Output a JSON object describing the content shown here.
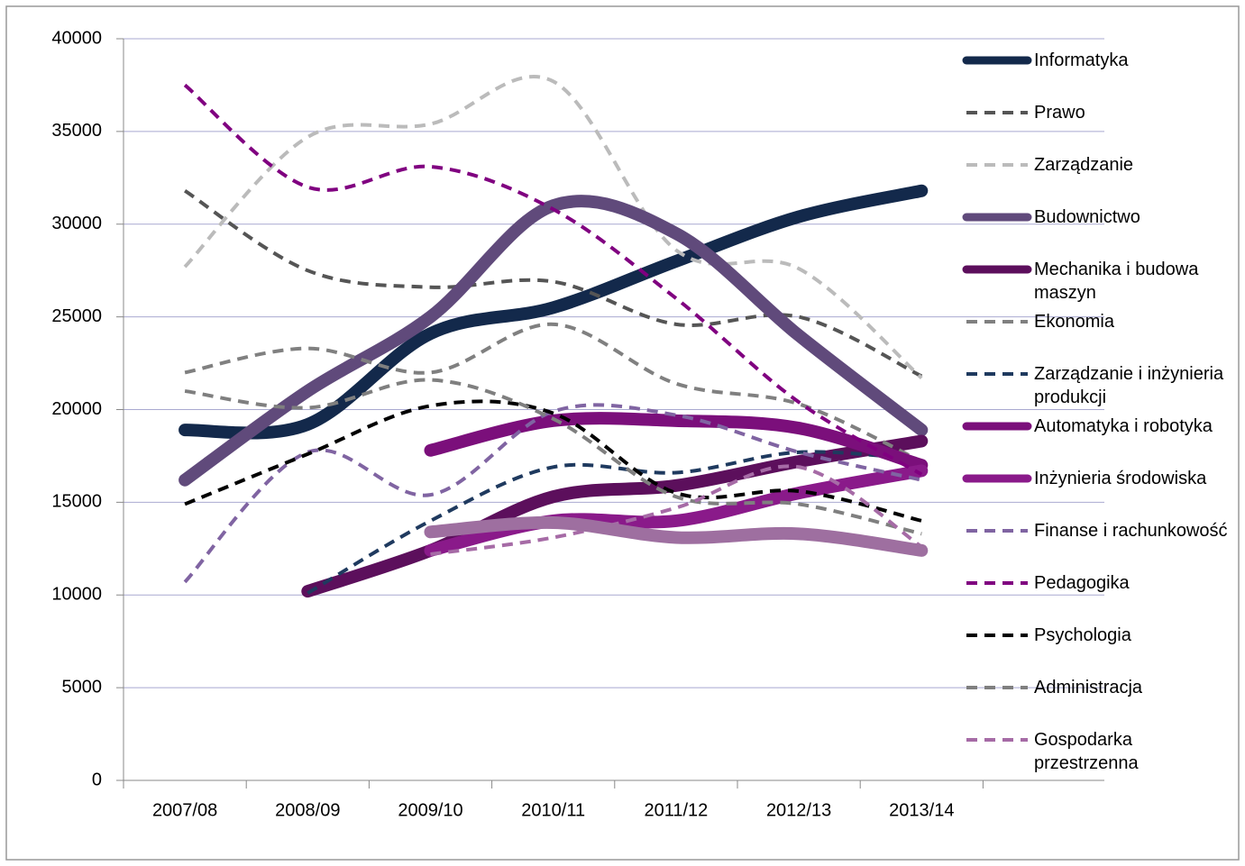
{
  "chart_data": {
    "type": "line",
    "categories": [
      "2007/08",
      "2008/09",
      "2009/10",
      "2010/11",
      "2011/12",
      "2012/13",
      "2013/14"
    ],
    "ylim": [
      0,
      40000
    ],
    "yticks": [
      0,
      5000,
      10000,
      15000,
      20000,
      25000,
      30000,
      35000,
      40000
    ],
    "grid": true,
    "smooth": true,
    "legend": "right",
    "series": [
      {
        "name": "Informatyka",
        "color": "#13294b",
        "style": "solid",
        "values": [
          18900,
          19200,
          24100,
          25500,
          28000,
          30400,
          31800
        ]
      },
      {
        "name": "Prawo",
        "color": "#555555",
        "style": "dashed",
        "values": [
          31800,
          27500,
          26600,
          26900,
          24600,
          25000,
          21800
        ]
      },
      {
        "name": "Zarządzanie",
        "color": "#bbbbbb",
        "style": "dashed",
        "values": [
          27700,
          34700,
          35400,
          37700,
          28600,
          27600,
          21700
        ]
      },
      {
        "name": "Budownictwo",
        "color": "#604a7b",
        "style": "solid",
        "values": [
          16200,
          21000,
          25000,
          31000,
          29500,
          24000,
          18900
        ]
      },
      {
        "name": "Mechanika i budowa maszyn",
        "color": "#5c0f5c",
        "style": "solid",
        "values": [
          null,
          10200,
          12400,
          15300,
          15900,
          17200,
          18300
        ]
      },
      {
        "name": "Ekonomia",
        "color": "#808080",
        "style": "dashed",
        "values": [
          22000,
          23300,
          22000,
          24600,
          21400,
          20300,
          17200
        ]
      },
      {
        "name": "Zarządzanie i inżynieria produkcji",
        "color": "#1f3a5f",
        "style": "dashed",
        "values": [
          null,
          10100,
          14000,
          16900,
          16600,
          17700,
          17300
        ]
      },
      {
        "name": "Automatyka i robotyka",
        "color": "#7b0f7b",
        "style": "solid",
        "values": [
          null,
          null,
          17800,
          19400,
          19400,
          19000,
          17000
        ]
      },
      {
        "name": "Inżynieria środowiska",
        "color": "#8a1a8a",
        "style": "solid",
        "values": [
          null,
          null,
          12400,
          14000,
          14000,
          15500,
          16700
        ]
      },
      {
        "name": "Finanse i rachunkowość",
        "color": "#8064a2",
        "style": "dashed",
        "values": [
          10700,
          17700,
          15400,
          19900,
          19700,
          17700,
          16200
        ]
      },
      {
        "name": "Pedagogika",
        "color": "#800080",
        "style": "dashed",
        "values": [
          37500,
          32000,
          33100,
          30800,
          26000,
          20400,
          16500
        ]
      },
      {
        "name": "Psychologia",
        "color": "#000000",
        "style": "dashed",
        "values": [
          14900,
          17600,
          20200,
          19800,
          15500,
          15600,
          14000
        ]
      },
      {
        "name": "Administracja",
        "color": "#7f7f7f",
        "style": "dashed",
        "values": [
          21000,
          20100,
          21600,
          19500,
          15300,
          14900,
          13300
        ]
      },
      {
        "name": "Gospodarka przestrzenna",
        "color": "#a66ba6",
        "style": "dashed",
        "values": [
          null,
          null,
          12200,
          13100,
          14700,
          16900,
          12600
        ]
      },
      {
        "color": "#9e6fa0",
        "style": "solid",
        "values": [
          null,
          null,
          13400,
          13900,
          13100,
          13300,
          12400
        ]
      }
    ]
  }
}
